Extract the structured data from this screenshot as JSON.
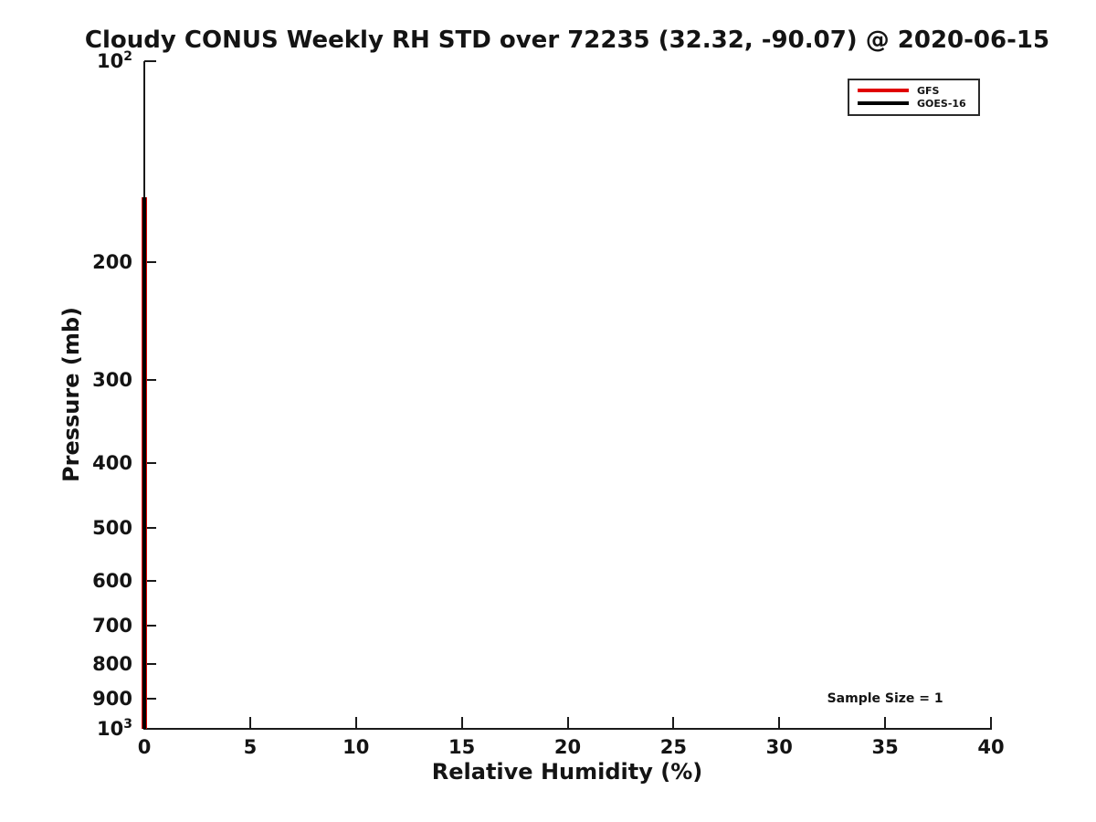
{
  "chart_data": {
    "type": "line",
    "title": "Cloudy CONUS Weekly RH STD over 72235 (32.32, -90.07) @ 2020-06-15",
    "xlabel": "Relative Humidity (%)",
    "ylabel": "Pressure (mb)",
    "x_range": [
      0,
      40
    ],
    "y_range": [
      100,
      1000
    ],
    "y_scale": "log",
    "y_axis_direction": "pressure-increases-downward",
    "grid": false,
    "xticks": [
      {
        "value": 0,
        "label": "0"
      },
      {
        "value": 5,
        "label": "5"
      },
      {
        "value": 10,
        "label": "10"
      },
      {
        "value": 15,
        "label": "15"
      },
      {
        "value": 20,
        "label": "20"
      },
      {
        "value": 25,
        "label": "25"
      },
      {
        "value": 30,
        "label": "30"
      },
      {
        "value": 35,
        "label": "35"
      },
      {
        "value": 40,
        "label": "40"
      }
    ],
    "yticks": [
      {
        "value": 100,
        "base": "10",
        "exp": "2"
      },
      {
        "value": 200,
        "label": "200"
      },
      {
        "value": 300,
        "label": "300"
      },
      {
        "value": 400,
        "label": "400"
      },
      {
        "value": 500,
        "label": "500"
      },
      {
        "value": 600,
        "label": "600"
      },
      {
        "value": 700,
        "label": "700"
      },
      {
        "value": 800,
        "label": "800"
      },
      {
        "value": 900,
        "label": "900"
      },
      {
        "value": 1000,
        "base": "10",
        "exp": "3"
      }
    ],
    "legend": {
      "position": "upper-right",
      "entries": [
        {
          "label": "GFS",
          "color": "#e00000"
        },
        {
          "label": "GOES-16",
          "color": "#000000"
        }
      ]
    },
    "annotation": {
      "text": "Sample Size = 1",
      "x": 35,
      "y": 900
    },
    "series": [
      {
        "name": "GFS",
        "color": "#e00000",
        "rh_std_value": 0,
        "pressure_top": 160,
        "pressure_bottom": 1000
      },
      {
        "name": "GOES-16",
        "color": "#000000",
        "rh_std_value": 0,
        "pressure_top": 160,
        "pressure_bottom": 1000
      }
    ]
  }
}
